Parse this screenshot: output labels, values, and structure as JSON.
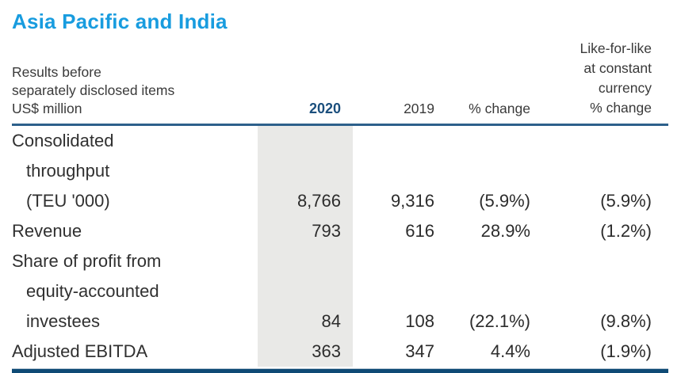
{
  "title": "Asia Pacific and India",
  "colors": {
    "title_blue": "#189cdf",
    "navy": "#1b4f7d",
    "rule_top": "#2d608b",
    "rule_bottom": "#0e4a75",
    "highlight_gray": "#e9e9e7",
    "text": "#303030"
  },
  "header": {
    "note_lines": [
      "Results before",
      "separately disclosed items",
      "US$ million"
    ],
    "col_2020": "2020",
    "col_2019": "2019",
    "col_pct_change": "% change",
    "col_lfl_lines": [
      "Like-for-like",
      "at constant",
      "currency",
      "% change"
    ]
  },
  "table": {
    "rows": [
      {
        "label_lines": [
          "Consolidated",
          "throughput",
          "(TEU '000)"
        ],
        "y2020": "8,766",
        "y2019": "9,316",
        "pct_change": "(5.9%)",
        "lfl_pct_change": "(5.9%)"
      },
      {
        "label_lines": [
          "Revenue"
        ],
        "y2020": "793",
        "y2019": "616",
        "pct_change": "28.9%",
        "lfl_pct_change": "(1.2%)"
      },
      {
        "label_lines": [
          "Share of profit from",
          "equity-accounted",
          "investees"
        ],
        "y2020": "84",
        "y2019": "108",
        "pct_change": "(22.1%)",
        "lfl_pct_change": "(9.8%)"
      },
      {
        "label_lines": [
          "Adjusted EBITDA"
        ],
        "y2020": "363",
        "y2019": "347",
        "pct_change": "4.4%",
        "lfl_pct_change": "(1.9%)"
      }
    ]
  }
}
